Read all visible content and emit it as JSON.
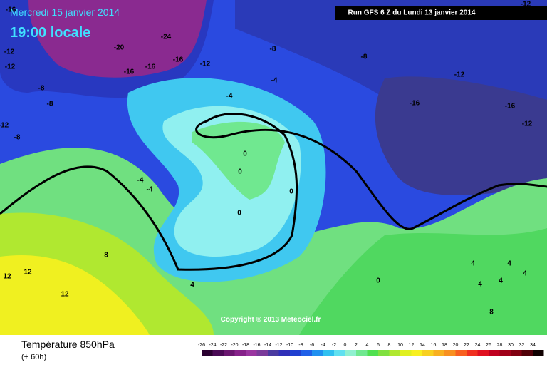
{
  "header": {
    "date": "Mercredi 15 janvier 2014",
    "time": "19:00 locale",
    "run": "Run GFS 6 Z du Lundi 13 janvier 2014"
  },
  "copyright": "Copyright © 2013 Meteociel.fr",
  "footer": {
    "title": "Température 850hPa",
    "lead": "(+ 60h)"
  },
  "contour_labels": [
    -16,
    -12,
    -12,
    -20,
    -24,
    -16,
    -16,
    -16,
    -12,
    -8,
    -8,
    -12,
    -16,
    -16,
    -12,
    -12,
    -4,
    -4,
    -8,
    -8,
    -8,
    -12,
    -4,
    -4,
    0,
    0,
    0,
    0,
    8,
    12,
    12,
    12,
    4,
    0,
    4,
    4,
    4,
    4,
    4,
    8
  ],
  "legend": {
    "ticks": [
      -26,
      -24,
      -22,
      -20,
      -18,
      -16,
      -14,
      -12,
      -10,
      -8,
      -6,
      -4,
      -2,
      0,
      2,
      4,
      6,
      8,
      10,
      12,
      14,
      16,
      18,
      20,
      22,
      24,
      26,
      28,
      30,
      32,
      34
    ],
    "colors": [
      "#2a0030",
      "#4a0a55",
      "#6a1670",
      "#86228a",
      "#9a35a0",
      "#7a3a9a",
      "#4a3aa0",
      "#3030b8",
      "#2040d0",
      "#2060e8",
      "#2090f0",
      "#30c0f0",
      "#60e0f0",
      "#90f0d0",
      "#70e890",
      "#50e050",
      "#80e040",
      "#b0e830",
      "#e0f020",
      "#f8f020",
      "#f8d020",
      "#f8b020",
      "#f89020",
      "#f86020",
      "#f03020",
      "#e01020",
      "#c00020",
      "#a00018",
      "#800010",
      "#500008",
      "#100000"
    ]
  }
}
